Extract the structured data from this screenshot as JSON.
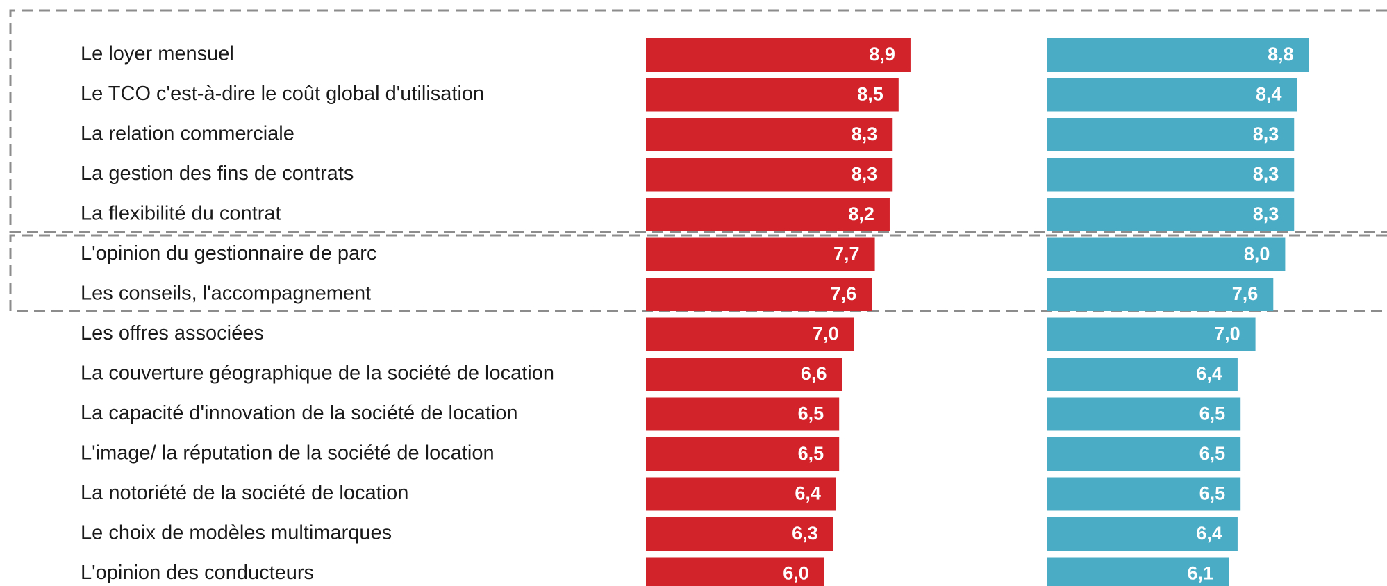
{
  "chart_data": {
    "type": "bar",
    "orientation": "horizontal",
    "categories": [
      "Le loyer mensuel",
      "Le TCO c'est-à-dire le coût global d'utilisation",
      "La relation commerciale",
      "La gestion des fins de contrats",
      "La flexibilité du contrat",
      "L'opinion du gestionnaire de parc",
      "Les conseils, l'accompagnement",
      "Les offres associées",
      "La couverture géographique de la société de location",
      "La capacité d'innovation de la société de location",
      "L'image/ la réputation de la société de location",
      "La notoriété de la société de location",
      "Le choix de modèles multimarques",
      "L'opinion des conducteurs"
    ],
    "series": [
      {
        "color": "#d2232a",
        "values": [
          8.9,
          8.5,
          8.3,
          8.3,
          8.2,
          7.7,
          7.6,
          7.0,
          6.6,
          6.5,
          6.5,
          6.4,
          6.3,
          6.0
        ],
        "value_labels": [
          "8,9",
          "8,5",
          "8,3",
          "8,3",
          "8,2",
          "7,7",
          "7,6",
          "7,0",
          "6,6",
          "6,5",
          "6,5",
          "6,4",
          "6,3",
          "6,0"
        ]
      },
      {
        "color": "#4bacc6",
        "values": [
          8.8,
          8.4,
          8.3,
          8.3,
          8.3,
          8.0,
          7.6,
          7.0,
          6.4,
          6.5,
          6.5,
          6.5,
          6.4,
          6.1
        ],
        "value_labels": [
          "8,8",
          "8,4",
          "8,3",
          "8,3",
          "8,3",
          "8,0",
          "7,6",
          "7,0",
          "6,4",
          "6,5",
          "6,5",
          "6,5",
          "6,4",
          "6,1"
        ]
      }
    ]
  }
}
